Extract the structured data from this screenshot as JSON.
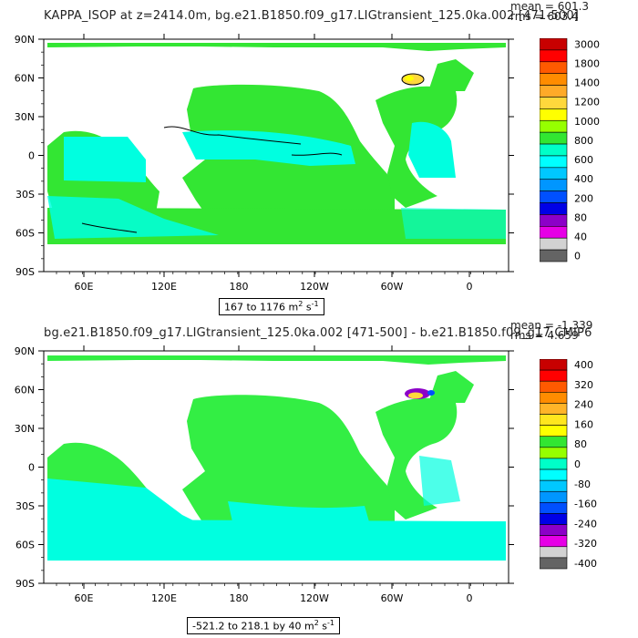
{
  "panels": [
    {
      "title": "KAPPA_ISOP at z=2414.0m, bg.e21.B1850.f09_g17.LIGtransient_125.0ka.002 [471-500]",
      "stat_mean": "mean = 601.3",
      "stat_rms": "rms = 603.4",
      "range_label": "167 to 1176 m",
      "range_units_exp": "2",
      "range_units_tail": "s",
      "range_units_tail_exp": "-1",
      "lat_ticks": [
        "90N",
        "60N",
        "30N",
        "0",
        "30S",
        "60S",
        "90S"
      ],
      "lon_ticks": [
        "60E",
        "120E",
        "180",
        "120W",
        "60W",
        "0"
      ],
      "colorbar": {
        "labels": [
          "3000",
          "1800",
          "1400",
          "1200",
          "1000",
          "800",
          "600",
          "400",
          "200",
          "80",
          "40",
          "0"
        ],
        "colors": [
          "#c80000",
          "#ff0000",
          "#ff5a00",
          "#ff8c00",
          "#ffaa28",
          "#ffd83c",
          "#ffff00",
          "#96ff00",
          "#32e632",
          "#00ffc8",
          "#00ffff",
          "#00c8ff",
          "#0096ff",
          "#0050ff",
          "#0000e6",
          "#8c00c8",
          "#e600e6",
          "#d2d2d2",
          "#646464"
        ]
      }
    },
    {
      "title": "bg.e21.B1850.f09_g17.LIGtransient_125.0ka.002 [471-500] - b.e21.B1850.f09_g17.CMIP6",
      "stat_mean": "mean = -1.339",
      "stat_rms": "rms = 4.659",
      "range_label": "-521.2 to 218.1 by 40 m",
      "range_units_exp": "2",
      "range_units_tail": "s",
      "range_units_tail_exp": "-1",
      "lat_ticks": [
        "90N",
        "60N",
        "30N",
        "0",
        "30S",
        "60S",
        "90S"
      ],
      "lon_ticks": [
        "60E",
        "120E",
        "180",
        "120W",
        "60W",
        "0"
      ],
      "colorbar": {
        "labels": [
          "400",
          "320",
          "240",
          "160",
          "80",
          "0",
          "-80",
          "-160",
          "-240",
          "-320",
          "-400"
        ],
        "colors": [
          "#c80000",
          "#ff0000",
          "#ff5a00",
          "#ff8c00",
          "#ffb428",
          "#ffe61e",
          "#ffff00",
          "#32e632",
          "#96ff00",
          "#00ffc8",
          "#00ffff",
          "#00c8ff",
          "#0096ff",
          "#0050ff",
          "#0000e6",
          "#8c00c8",
          "#e600e6",
          "#d2d2d2",
          "#646464"
        ]
      }
    }
  ],
  "colors": {
    "ocean_main_top": "#33e633",
    "ocean_cyan": "#00ffe0",
    "ocean_main_bottom": "#33ee44",
    "land": "#ffffff"
  }
}
